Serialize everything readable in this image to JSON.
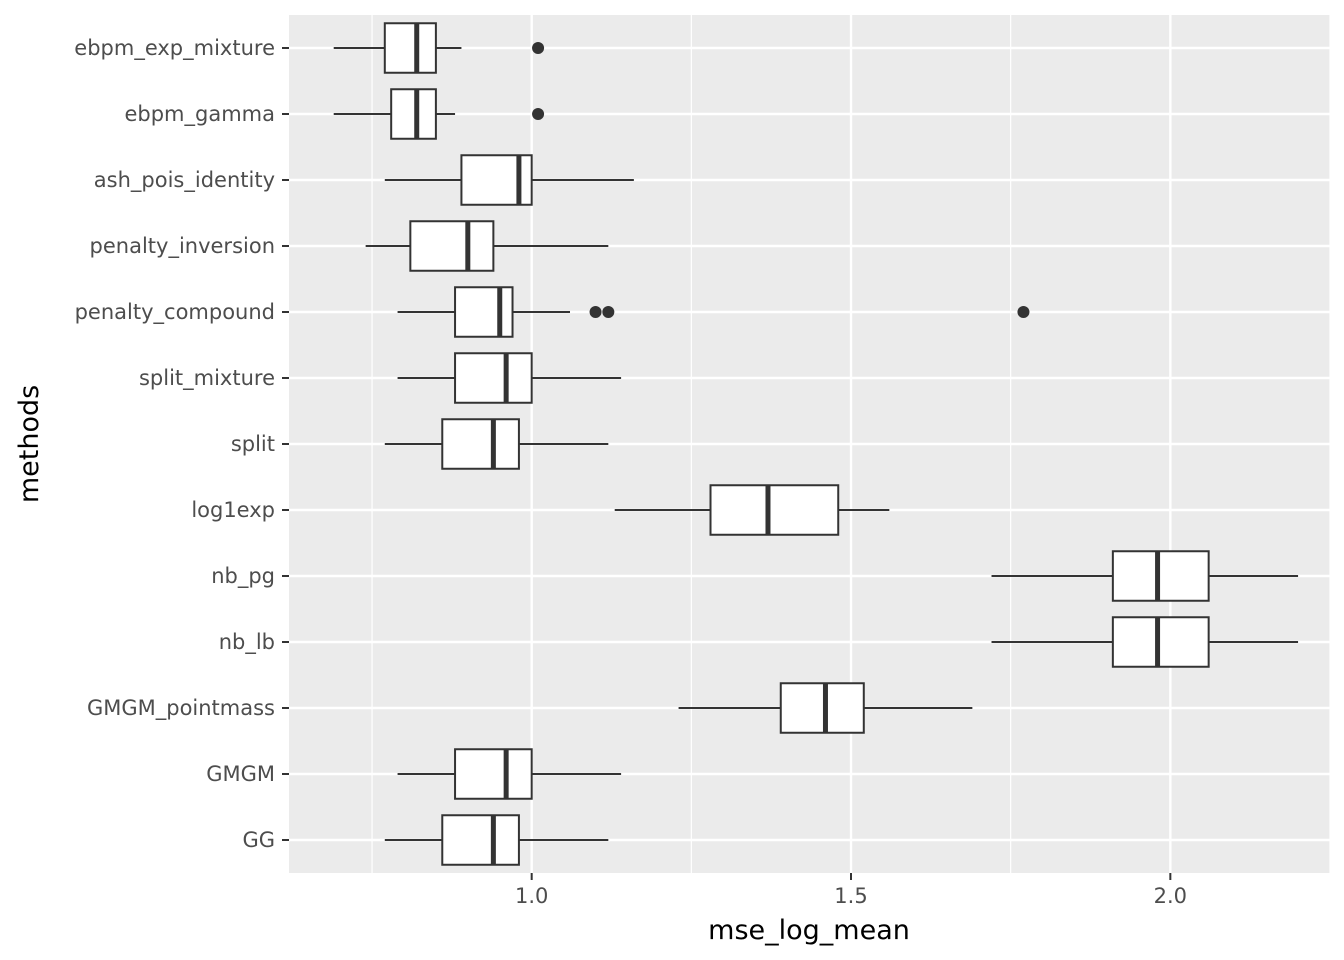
{
  "chart_data": {
    "type": "boxplot",
    "orientation": "horizontal",
    "xlabel": "mse_log_mean",
    "ylabel": "methods",
    "xlim": [
      0.62,
      2.25
    ],
    "x_ticks": [
      1.0,
      1.5,
      2.0
    ],
    "x_tick_labels": [
      "1.0",
      "1.5",
      "2.0"
    ],
    "grid": true,
    "panel_color": "#ebebeb",
    "grid_color": "#ffffff",
    "box_fill": "#ffffff",
    "line_color": "#333333",
    "categories": [
      "ebpm_exp_mixture",
      "ebpm_gamma",
      "ash_pois_identity",
      "penalty_inversion",
      "penalty_compound",
      "split_mixture",
      "split",
      "log1exp",
      "nb_pg",
      "nb_lb",
      "GMGM_pointmass",
      "GMGM",
      "GG"
    ],
    "boxes": [
      {
        "min": 0.69,
        "q1": 0.77,
        "median": 0.82,
        "q3": 0.85,
        "max": 0.89,
        "outliers": [
          1.01
        ]
      },
      {
        "min": 0.69,
        "q1": 0.78,
        "median": 0.82,
        "q3": 0.85,
        "max": 0.88,
        "outliers": [
          1.01
        ]
      },
      {
        "min": 0.77,
        "q1": 0.89,
        "median": 0.98,
        "q3": 1.0,
        "max": 1.16,
        "outliers": []
      },
      {
        "min": 0.74,
        "q1": 0.81,
        "median": 0.9,
        "q3": 0.94,
        "max": 1.12,
        "outliers": []
      },
      {
        "min": 0.79,
        "q1": 0.88,
        "median": 0.95,
        "q3": 0.97,
        "max": 1.06,
        "outliers": [
          1.1,
          1.12,
          1.77
        ]
      },
      {
        "min": 0.79,
        "q1": 0.88,
        "median": 0.96,
        "q3": 1.0,
        "max": 1.14,
        "outliers": []
      },
      {
        "min": 0.77,
        "q1": 0.86,
        "median": 0.94,
        "q3": 0.98,
        "max": 1.12,
        "outliers": []
      },
      {
        "min": 1.13,
        "q1": 1.28,
        "median": 1.37,
        "q3": 1.48,
        "max": 1.56,
        "outliers": []
      },
      {
        "min": 1.72,
        "q1": 1.91,
        "median": 1.98,
        "q3": 2.06,
        "max": 2.2,
        "outliers": []
      },
      {
        "min": 1.72,
        "q1": 1.91,
        "median": 1.98,
        "q3": 2.06,
        "max": 2.2,
        "outliers": []
      },
      {
        "min": 1.23,
        "q1": 1.39,
        "median": 1.46,
        "q3": 1.52,
        "max": 1.69,
        "outliers": []
      },
      {
        "min": 0.79,
        "q1": 0.88,
        "median": 0.96,
        "q3": 1.0,
        "max": 1.14,
        "outliers": []
      },
      {
        "min": 0.77,
        "q1": 0.86,
        "median": 0.94,
        "q3": 0.98,
        "max": 1.12,
        "outliers": []
      }
    ]
  }
}
